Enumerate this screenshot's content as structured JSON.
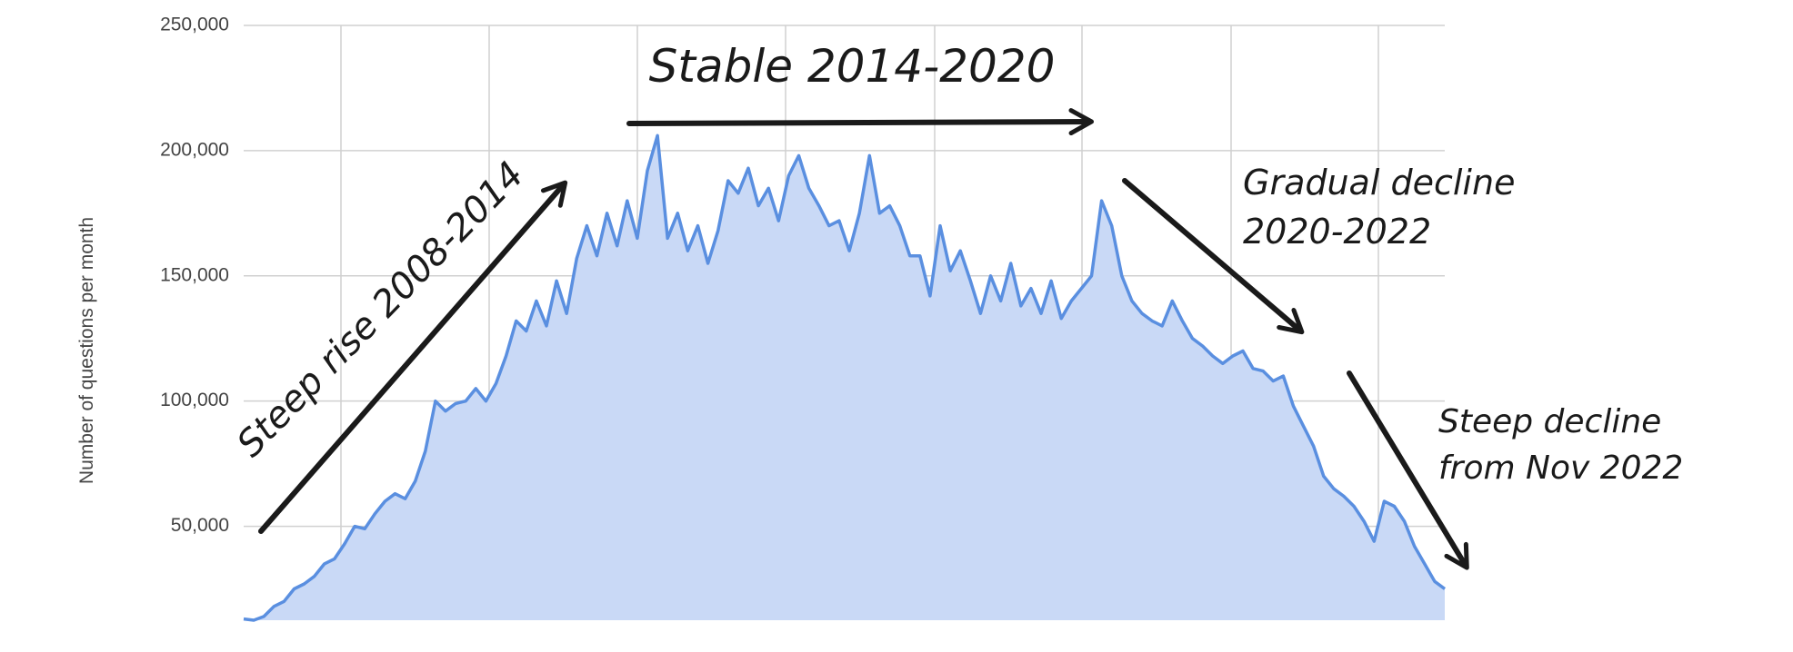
{
  "chart_data": {
    "type": "area",
    "y_axis_label": "Number of questions per month",
    "values": [
      13000,
      12500,
      14000,
      18000,
      20000,
      25000,
      27000,
      30000,
      35000,
      37000,
      43000,
      50000,
      49000,
      55000,
      60000,
      63000,
      61000,
      68000,
      80000,
      100000,
      96000,
      99000,
      100000,
      105000,
      100000,
      107000,
      118000,
      132000,
      128000,
      140000,
      130000,
      148000,
      135000,
      157000,
      170000,
      158000,
      175000,
      162000,
      180000,
      165000,
      192000,
      206000,
      165000,
      175000,
      160000,
      170000,
      155000,
      168000,
      188000,
      183000,
      193000,
      178000,
      185000,
      172000,
      190000,
      198000,
      185000,
      178000,
      170000,
      172000,
      160000,
      175000,
      198000,
      175000,
      178000,
      170000,
      158000,
      158000,
      142000,
      170000,
      152000,
      160000,
      148000,
      135000,
      150000,
      140000,
      155000,
      138000,
      145000,
      135000,
      148000,
      133000,
      140000,
      145000,
      150000,
      180000,
      170000,
      150000,
      140000,
      135000,
      132000,
      130000,
      140000,
      132000,
      125000,
      122000,
      118000,
      115000,
      118000,
      120000,
      113000,
      112000,
      108000,
      110000,
      98000,
      90000,
      82000,
      70000,
      65000,
      62000,
      58000,
      52000,
      44000,
      60000,
      58000,
      52000,
      42000,
      35000,
      28000,
      25000
    ],
    "color": "#5a8fe0",
    "fill_color": "#c9d9f6",
    "ylim": [
      12500,
      250000
    ],
    "yticks": [
      {
        "value": 50000,
        "label": "50,000"
      },
      {
        "value": 100000,
        "label": "100,000"
      },
      {
        "value": 150000,
        "label": "150,000"
      },
      {
        "value": 200000,
        "label": "200,000"
      },
      {
        "value": 250000,
        "label": "250,000"
      }
    ],
    "grid": true,
    "annotations": [
      [
        "Steep rise 2008-2014"
      ],
      [
        "Stable 2014-2020"
      ],
      [
        "Gradual decline",
        "2020-2022"
      ],
      [
        "Steep decline",
        "from Nov 2022"
      ]
    ]
  }
}
